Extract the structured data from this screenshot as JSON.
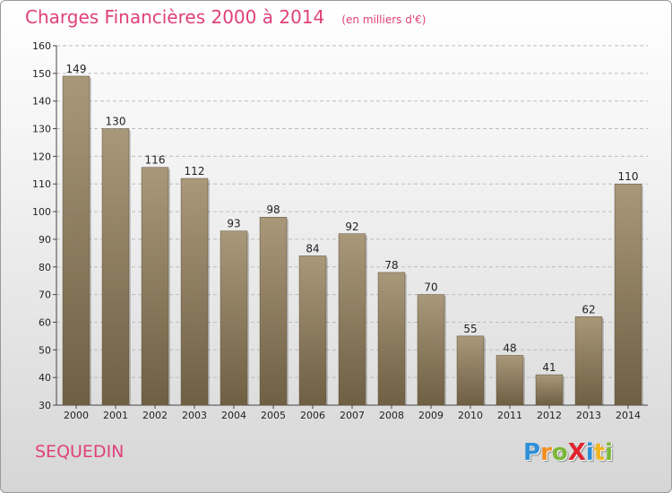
{
  "chart_data": {
    "type": "bar",
    "title": "Charges Financières 2000 à 2014",
    "unit": "(en milliers d'€)",
    "categories": [
      "2000",
      "2001",
      "2002",
      "2003",
      "2004",
      "2005",
      "2006",
      "2007",
      "2008",
      "2009",
      "2010",
      "2011",
      "2012",
      "2013",
      "2014"
    ],
    "values": [
      149,
      130,
      116,
      112,
      93,
      98,
      84,
      92,
      78,
      70,
      55,
      48,
      41,
      62,
      110
    ],
    "ylim": [
      30,
      160
    ],
    "yticks": [
      30,
      40,
      50,
      60,
      70,
      80,
      90,
      100,
      110,
      120,
      130,
      140,
      150,
      160
    ],
    "grid": "horizontal dashed",
    "bar_color": "#8b7a5c"
  },
  "footer": {
    "city": "SEQUEDIN",
    "brand_letters": [
      {
        "char": "P",
        "color": "#2f8fd8"
      },
      {
        "char": "r",
        "color": "#f28c1e"
      },
      {
        "char": "o",
        "color": "#7cb83a"
      },
      {
        "char": "X",
        "color": "#e0242e"
      },
      {
        "char": "i",
        "color": "#2f8fd8"
      },
      {
        "char": "t",
        "color": "#f2b51e"
      },
      {
        "char": "i",
        "color": "#7cb83a"
      }
    ]
  },
  "colors": {
    "title": "#e0407a",
    "bar_dark": "#6f5f43",
    "bar_light": "#a9987a"
  }
}
